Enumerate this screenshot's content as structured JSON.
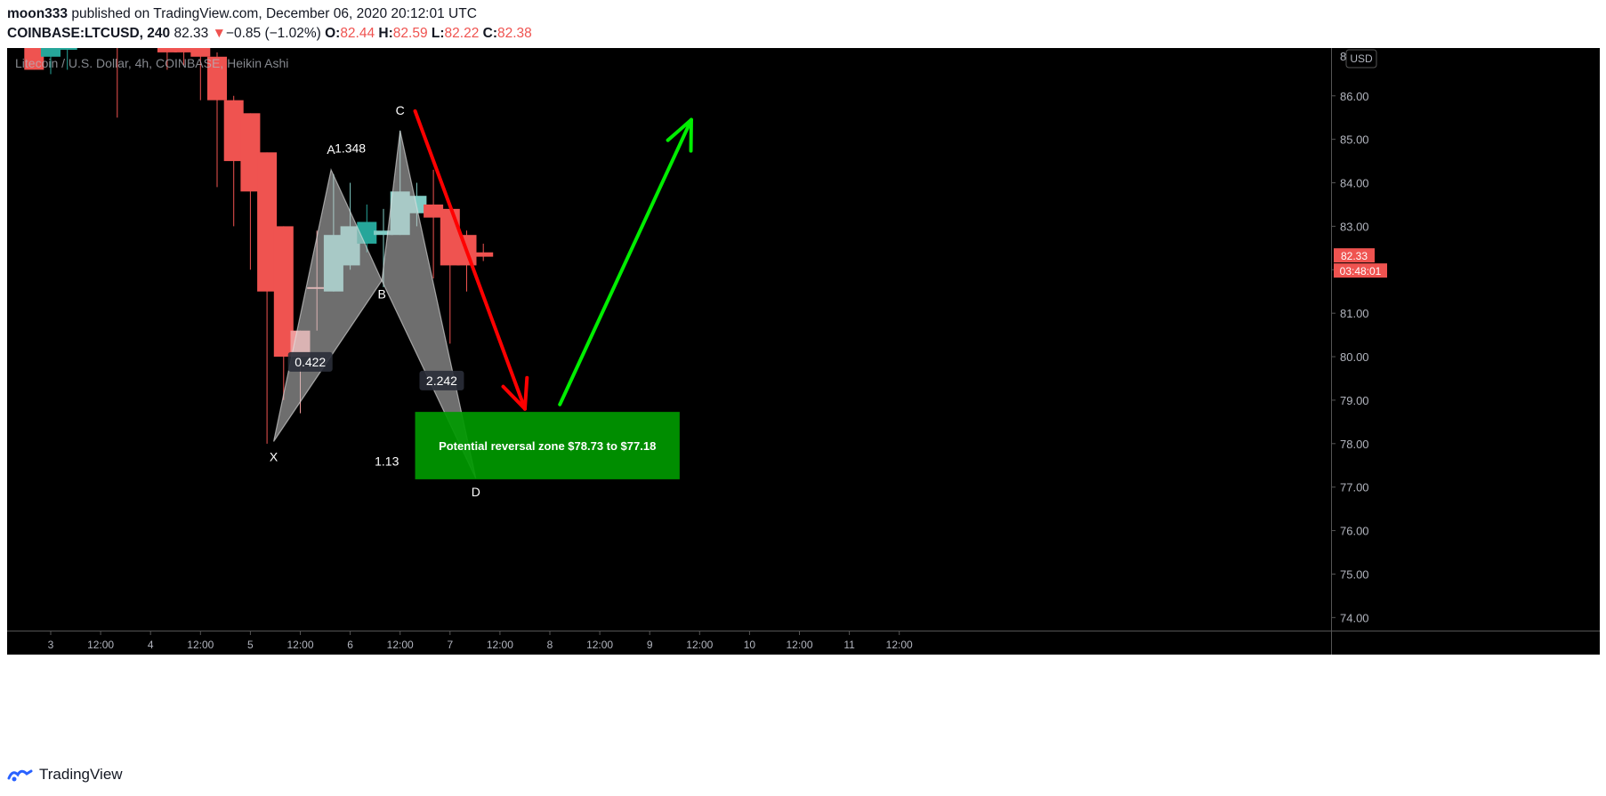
{
  "header": {
    "author": "moon333",
    "published": "published on TradingView.com, December 06, 2020 20:12:01 UTC",
    "symbol": "COINBASE:LTCUSD, 240",
    "last": "82.33",
    "change_arrow": "▼",
    "change": "−0.85 (−1.02%)",
    "o_label": "O:",
    "o": "82.44",
    "h_label": "H:",
    "h": "82.59",
    "l_label": "L:",
    "l": "82.22",
    "c_label": "C:",
    "c": "82.38"
  },
  "footer": {
    "brand": "TradingView",
    "icon": "tradingview-logo-icon"
  },
  "colors": {
    "background": "#000000",
    "up": "#26a69a",
    "up_light": "#80cbc4",
    "down": "#ef5350",
    "down_light": "#ef9a9a",
    "zone": "#009900",
    "arrow_down": "#ff0000",
    "arrow_up": "#00ee00",
    "axis_text": "#b2b5be"
  },
  "chart_data": {
    "type": "candlestick",
    "title": "Litecoin / U.S. Dollar, 4h, COINBASE, Heikin Ashi",
    "currency_label": "USD",
    "ylim": [
      73.7,
      87.1
    ],
    "y_ticks": [
      "74.00",
      "75.00",
      "76.00",
      "77.00",
      "78.00",
      "79.00",
      "80.00",
      "81.00",
      "82.00",
      "83.00",
      "84.00",
      "85.00",
      "86.00"
    ],
    "y_top_label": "8",
    "x_ticks": [
      {
        "i": 0,
        "label": "3"
      },
      {
        "i": 3,
        "label": "12:00"
      },
      {
        "i": 6,
        "label": "4"
      },
      {
        "i": 9,
        "label": "12:00"
      },
      {
        "i": 12,
        "label": "5"
      },
      {
        "i": 15,
        "label": "12:00"
      },
      {
        "i": 18,
        "label": "6"
      },
      {
        "i": 21,
        "label": "12:00"
      },
      {
        "i": 24,
        "label": "7"
      },
      {
        "i": 27,
        "label": "12:00"
      },
      {
        "i": 30,
        "label": "8"
      },
      {
        "i": 33,
        "label": "12:00"
      },
      {
        "i": 36,
        "label": "9"
      },
      {
        "i": 39,
        "label": "12:00"
      },
      {
        "i": 42,
        "label": "10"
      },
      {
        "i": 45,
        "label": "12:00"
      },
      {
        "i": 48,
        "label": "11"
      },
      {
        "i": 51,
        "label": "12:00"
      }
    ],
    "candles": [
      {
        "i": -1,
        "o": 88.5,
        "h": 88.8,
        "l": 86.6,
        "c": 86.6
      },
      {
        "i": 0,
        "o": 86.9,
        "h": 87.3,
        "l": 86.5,
        "c": 87.2
      },
      {
        "i": 1,
        "o": 87.1,
        "h": 87.4,
        "l": 86.6,
        "c": 87.1
      },
      {
        "i": 4,
        "o": 88.0,
        "h": 88.3,
        "l": 85.5,
        "c": 87.2
      },
      {
        "i": 7,
        "o": 87.6,
        "h": 87.8,
        "l": 86.6,
        "c": 87.0
      },
      {
        "i": 8,
        "o": 87.5,
        "h": 87.8,
        "l": 86.7,
        "c": 87.0
      },
      {
        "i": 9,
        "o": 87.3,
        "h": 87.4,
        "l": 85.9,
        "c": 86.9
      },
      {
        "i": 10,
        "o": 86.9,
        "h": 87.0,
        "l": 83.9,
        "c": 85.9
      },
      {
        "i": 11,
        "o": 85.9,
        "h": 86.0,
        "l": 83.0,
        "c": 84.5
      },
      {
        "i": 12,
        "o": 85.6,
        "h": 85.6,
        "l": 82.0,
        "c": 83.8
      },
      {
        "i": 13,
        "o": 84.7,
        "h": 84.7,
        "l": 78.0,
        "c": 81.5
      },
      {
        "i": 14,
        "o": 83.0,
        "h": 83.0,
        "l": 79.0,
        "c": 80.0
      },
      {
        "i": 15,
        "o": 80.0,
        "h": 80.6,
        "l": 78.7,
        "c": 80.6,
        "color": "down_light"
      },
      {
        "i": 16,
        "o": 81.6,
        "h": 82.9,
        "l": 80.6,
        "c": 81.6,
        "color": "down_light"
      },
      {
        "i": 17,
        "o": 81.5,
        "h": 84.2,
        "l": 81.5,
        "c": 82.8
      },
      {
        "i": 18,
        "o": 82.1,
        "h": 84.0,
        "l": 82.0,
        "c": 83.0
      },
      {
        "i": 19,
        "o": 82.6,
        "h": 83.5,
        "l": 82.4,
        "c": 83.1
      },
      {
        "i": 20,
        "o": 82.8,
        "h": 83.4,
        "l": 81.6,
        "c": 82.9
      },
      {
        "i": 21,
        "o": 82.8,
        "h": 85.2,
        "l": 82.8,
        "c": 83.8
      },
      {
        "i": 22,
        "o": 83.3,
        "h": 84.0,
        "l": 83.0,
        "c": 83.7
      },
      {
        "i": 23,
        "o": 83.5,
        "h": 84.3,
        "l": 81.8,
        "c": 83.2
      },
      {
        "i": 24,
        "o": 83.4,
        "h": 83.4,
        "l": 80.3,
        "c": 82.1
      },
      {
        "i": 25,
        "o": 82.8,
        "h": 82.9,
        "l": 81.5,
        "c": 82.1
      },
      {
        "i": 26,
        "o": 82.4,
        "h": 82.6,
        "l": 82.2,
        "c": 82.3
      }
    ],
    "last_price": {
      "value": 82.33,
      "label": "82.33",
      "countdown": "03:48:01"
    },
    "pattern": {
      "points": [
        {
          "name": "X",
          "i": 13.4,
          "price": 78.05
        },
        {
          "name": "A",
          "i": 16.85,
          "price": 84.3
        },
        {
          "name": "B",
          "i": 19.9,
          "price": 81.75
        },
        {
          "name": "C",
          "i": 21.0,
          "price": 85.2
        },
        {
          "name": "D",
          "i": 25.55,
          "price": 77.2
        }
      ],
      "ratios": [
        {
          "label": "1.348",
          "i": 18.0,
          "price": 84.8,
          "boxed": false
        },
        {
          "label": "0.422",
          "i": 15.6,
          "price": 79.88,
          "boxed": true
        },
        {
          "label": "2.242",
          "i": 23.5,
          "price": 79.45,
          "boxed": true
        },
        {
          "label": "1.13",
          "i": 20.2,
          "price": 77.6,
          "boxed": false
        }
      ]
    },
    "zone": {
      "top": 78.73,
      "bottom": 77.18,
      "i_start": 21.9,
      "i_end": 37.8,
      "label": "Potential reversal zone $78.73 to $77.18"
    },
    "arrows": [
      {
        "name": "arrow-down",
        "from": {
          "i": 21.9,
          "price": 85.65
        },
        "to": {
          "i": 28.5,
          "price": 78.8
        },
        "color": "arrow_down"
      },
      {
        "name": "arrow-up",
        "from": {
          "i": 30.6,
          "price": 78.9
        },
        "to": {
          "i": 38.5,
          "price": 85.45
        },
        "color": "arrow_up"
      }
    ]
  }
}
